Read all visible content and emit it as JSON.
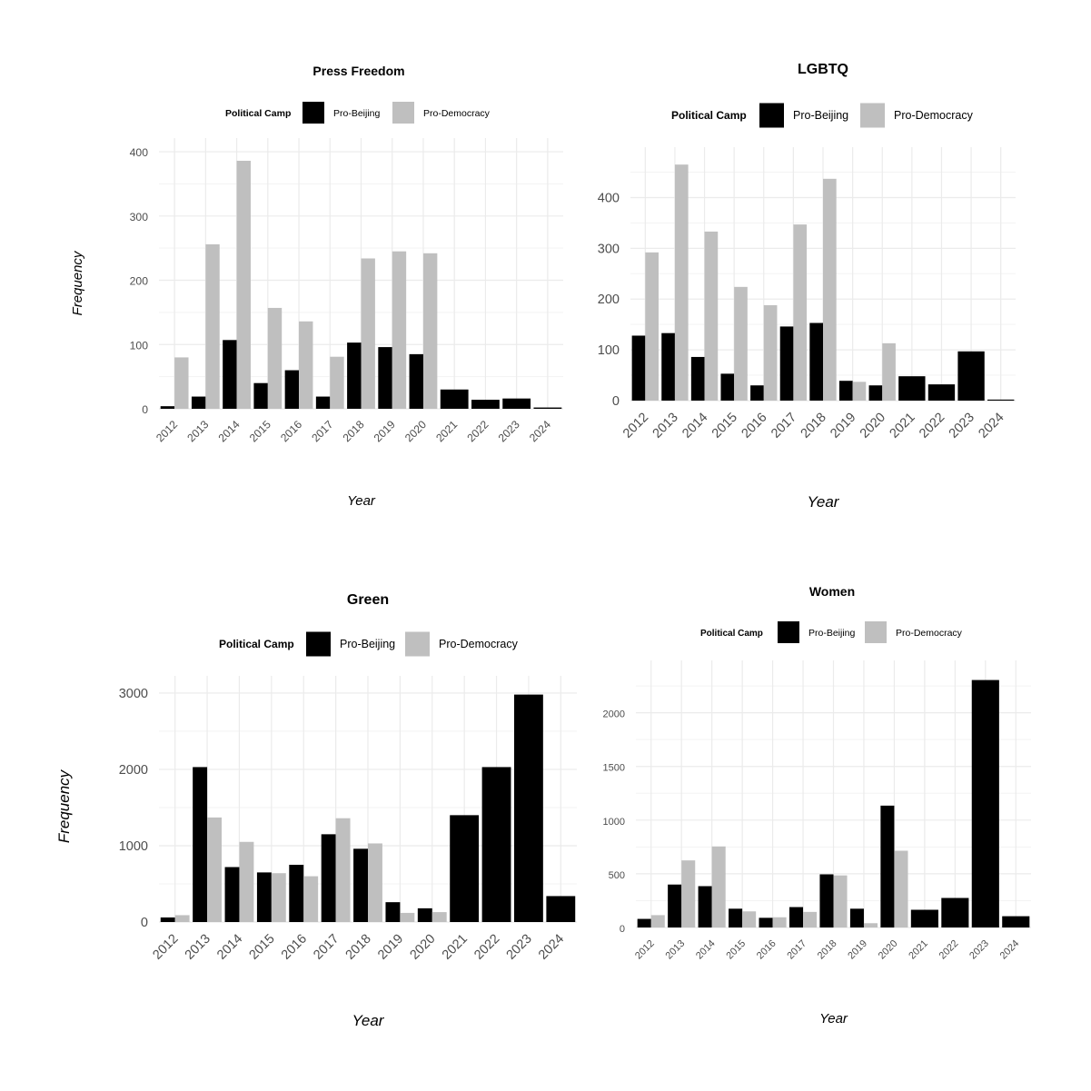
{
  "y_axis_label": "Frequency",
  "x_axis_label": "Year",
  "legend_title": "Political Camp",
  "colors": {
    "Pro-Beijing": "#000000",
    "Pro-Democracy": "#bfbfbf",
    "grid": "#ebebeb",
    "tick_text": "#4d4d4d"
  },
  "chart_data": [
    {
      "type": "bar",
      "title": "Press Freedom",
      "xlabel": "Year",
      "ylabel": "Frequency",
      "legend_title": "Political Camp",
      "legend_position": "top",
      "grid": true,
      "categories": [
        "2012",
        "2013",
        "2014",
        "2015",
        "2016",
        "2017",
        "2018",
        "2019",
        "2020",
        "2021",
        "2022",
        "2023",
        "2024"
      ],
      "ylim": [
        0,
        410
      ],
      "yticks": [
        0,
        100,
        200,
        300,
        400
      ],
      "series": [
        {
          "name": "Pro-Beijing",
          "values": [
            4,
            19,
            107,
            40,
            60,
            19,
            103,
            96,
            85,
            30,
            14,
            16,
            2
          ]
        },
        {
          "name": "Pro-Democracy",
          "values": [
            80,
            256,
            386,
            157,
            136,
            81,
            234,
            245,
            242,
            null,
            null,
            null,
            null
          ]
        }
      ]
    },
    {
      "type": "bar",
      "title": "LGBTQ",
      "xlabel": "Year",
      "ylabel": "",
      "legend_title": "Political Camp",
      "legend_position": "top",
      "grid": true,
      "categories": [
        "2012",
        "2013",
        "2014",
        "2015",
        "2016",
        "2017",
        "2018",
        "2019",
        "2020",
        "2021",
        "2022",
        "2023",
        "2024"
      ],
      "ylim": [
        0,
        485
      ],
      "yticks": [
        0,
        100,
        200,
        300,
        400
      ],
      "series": [
        {
          "name": "Pro-Beijing",
          "values": [
            128,
            133,
            86,
            53,
            30,
            146,
            153,
            39,
            30,
            48,
            32,
            97,
            2
          ]
        },
        {
          "name": "Pro-Democracy",
          "values": [
            292,
            465,
            333,
            224,
            188,
            347,
            437,
            37,
            113,
            null,
            null,
            null,
            null
          ]
        }
      ]
    },
    {
      "type": "bar",
      "title": "Green",
      "xlabel": "Year",
      "ylabel": "Frequency",
      "legend_title": "Political Camp",
      "legend_position": "top",
      "grid": true,
      "categories": [
        "2012",
        "2013",
        "2014",
        "2015",
        "2016",
        "2017",
        "2018",
        "2019",
        "2020",
        "2021",
        "2022",
        "2023",
        "2024"
      ],
      "ylim": [
        0,
        3130
      ],
      "yticks": [
        0,
        1000,
        2000,
        3000
      ],
      "series": [
        {
          "name": "Pro-Beijing",
          "values": [
            60,
            2030,
            720,
            650,
            750,
            1150,
            960,
            260,
            180,
            1400,
            2030,
            2980,
            340
          ]
        },
        {
          "name": "Pro-Democracy",
          "values": [
            90,
            1370,
            1050,
            640,
            600,
            1360,
            1030,
            120,
            130,
            null,
            null,
            null,
            null
          ]
        }
      ]
    },
    {
      "type": "bar",
      "title": "Women",
      "xlabel": "Year",
      "ylabel": "",
      "legend_title": "Political Camp",
      "legend_position": "top",
      "grid": true,
      "categories": [
        "2012",
        "2013",
        "2014",
        "2015",
        "2016",
        "2017",
        "2018",
        "2019",
        "2020",
        "2021",
        "2022",
        "2023",
        "2024"
      ],
      "ylim": [
        0,
        2420
      ],
      "yticks": [
        0,
        500,
        1000,
        1500,
        2000
      ],
      "series": [
        {
          "name": "Pro-Beijing",
          "values": [
            80,
            400,
            385,
            175,
            90,
            190,
            495,
            175,
            1135,
            165,
            275,
            2305,
            105
          ]
        },
        {
          "name": "Pro-Democracy",
          "values": [
            115,
            625,
            755,
            150,
            95,
            145,
            485,
            40,
            715,
            null,
            null,
            null,
            null
          ]
        }
      ]
    }
  ]
}
